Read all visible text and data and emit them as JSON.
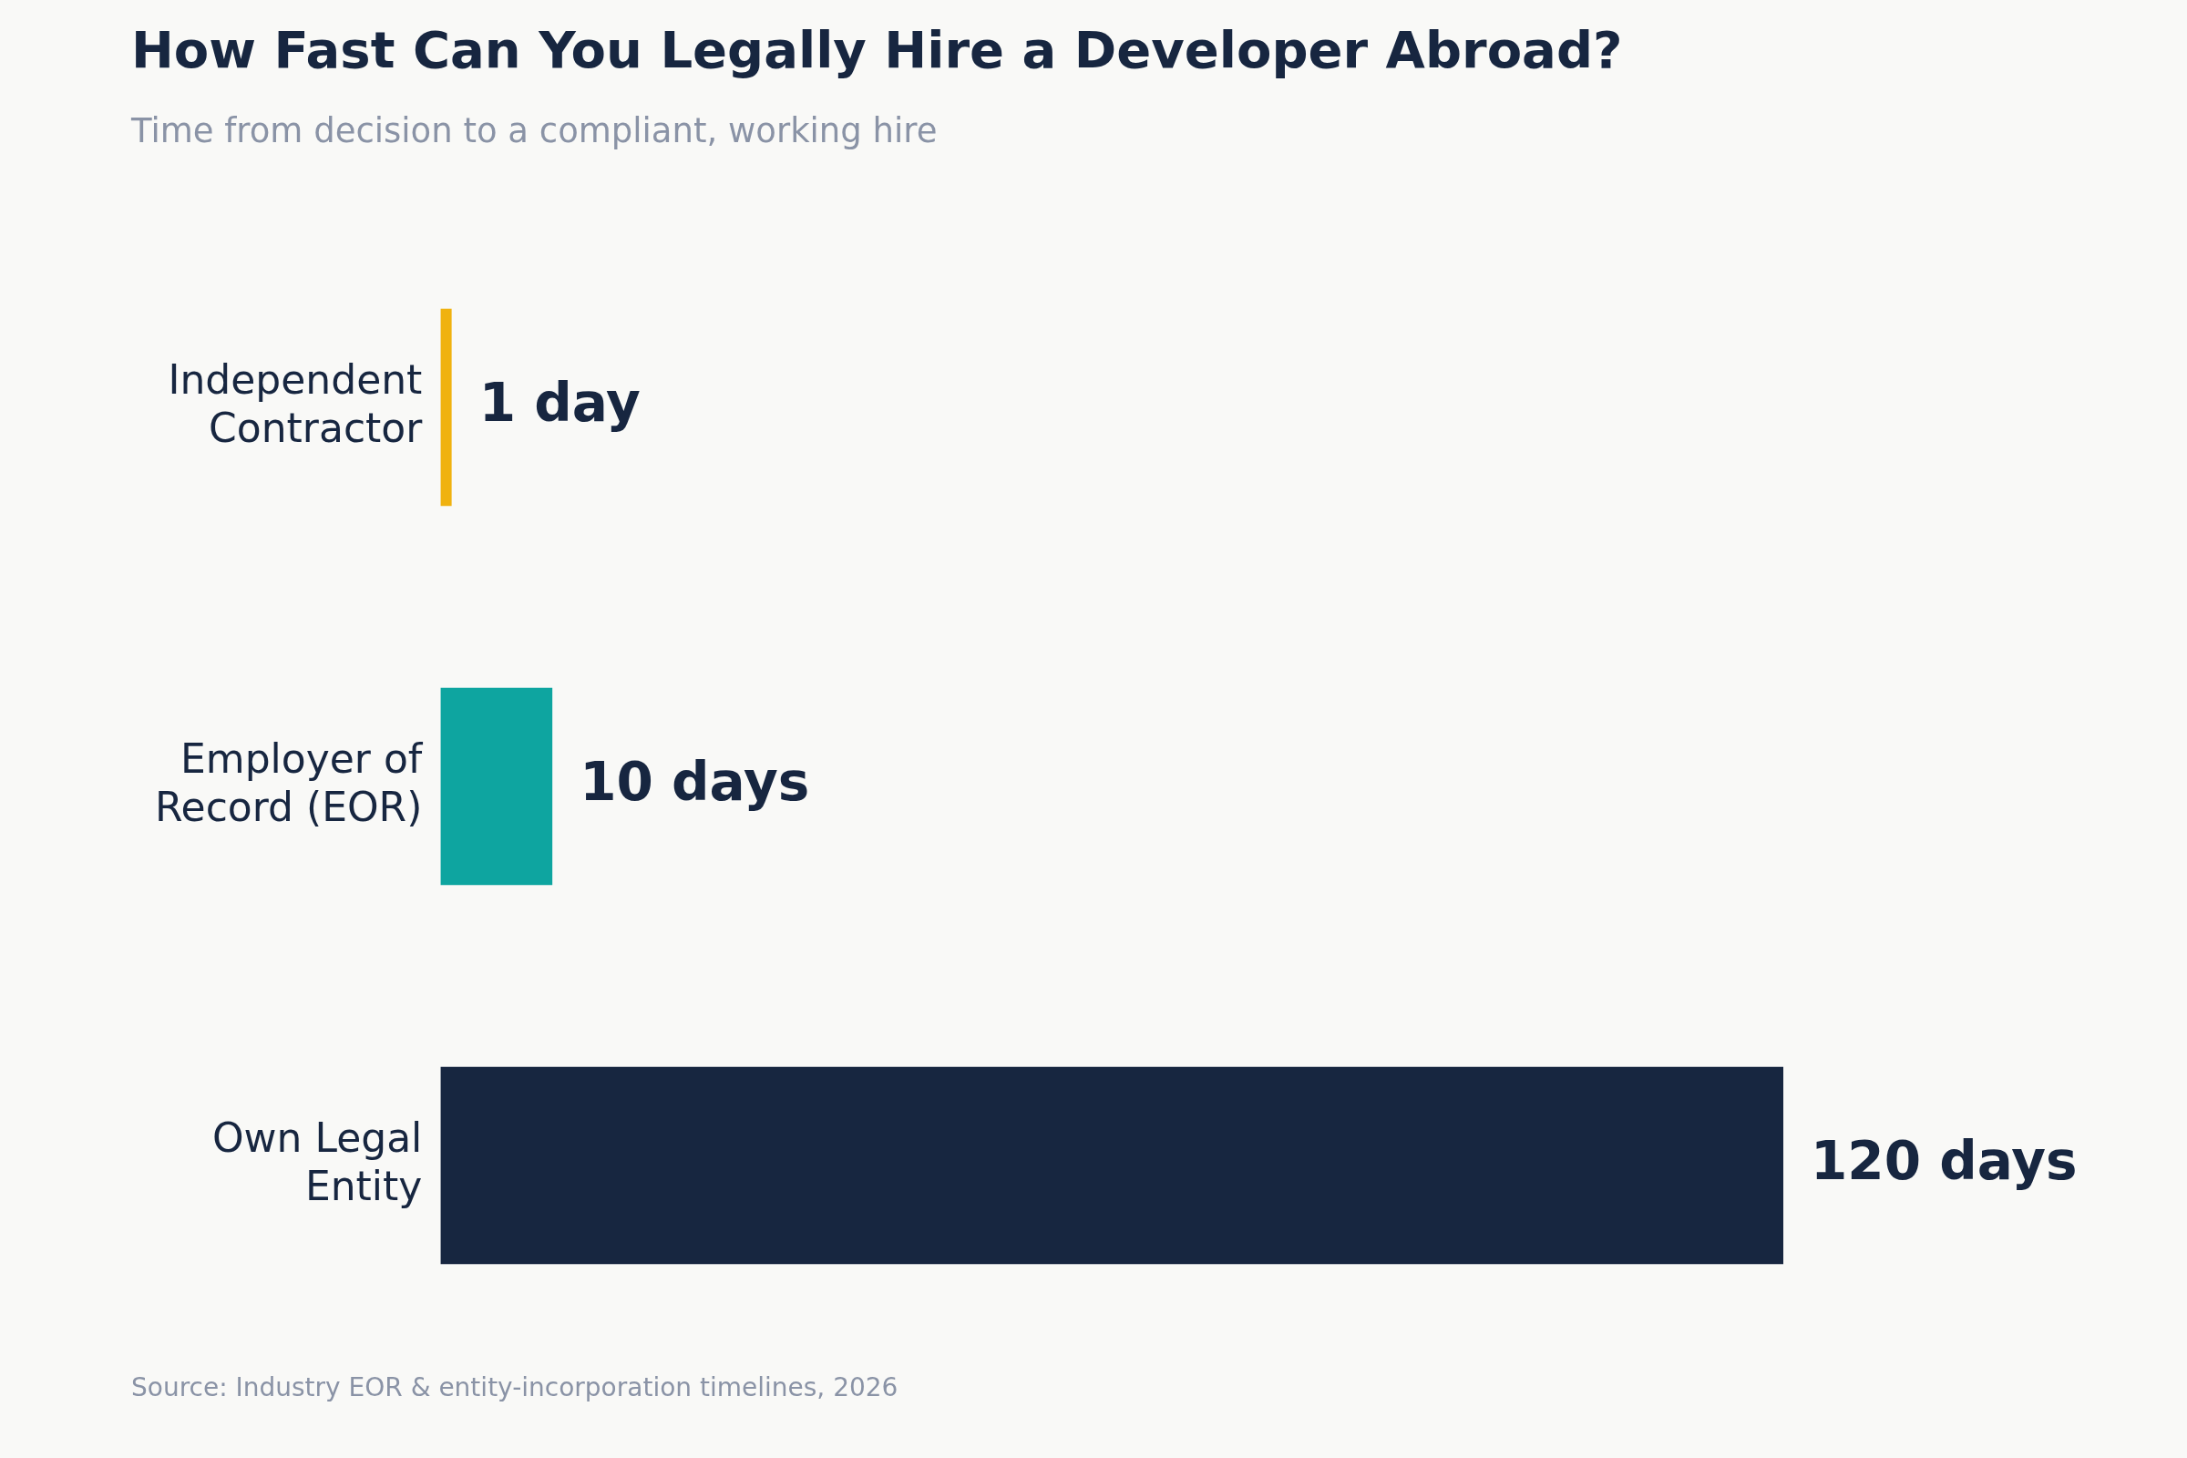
{
  "chart_data": {
    "type": "bar",
    "orientation": "horizontal",
    "title": "How Fast Can You Legally Hire a Developer Abroad?",
    "subtitle": "Time from decision to a compliant, working hire",
    "categories": [
      "Independent Contractor",
      "Employer of Record (EOR)",
      "Own Legal Entity"
    ],
    "values": [
      1,
      10,
      120
    ],
    "colors": [
      "#f0b20f",
      "#0ea5a0",
      "#172640"
    ],
    "value_labels": [
      "1 day",
      "10 days",
      "120 days"
    ],
    "tick_labels": "y",
    "annotations": [
      "Source: Industry EOR & entity-incorporation timelines, 2026"
    ]
  }
}
